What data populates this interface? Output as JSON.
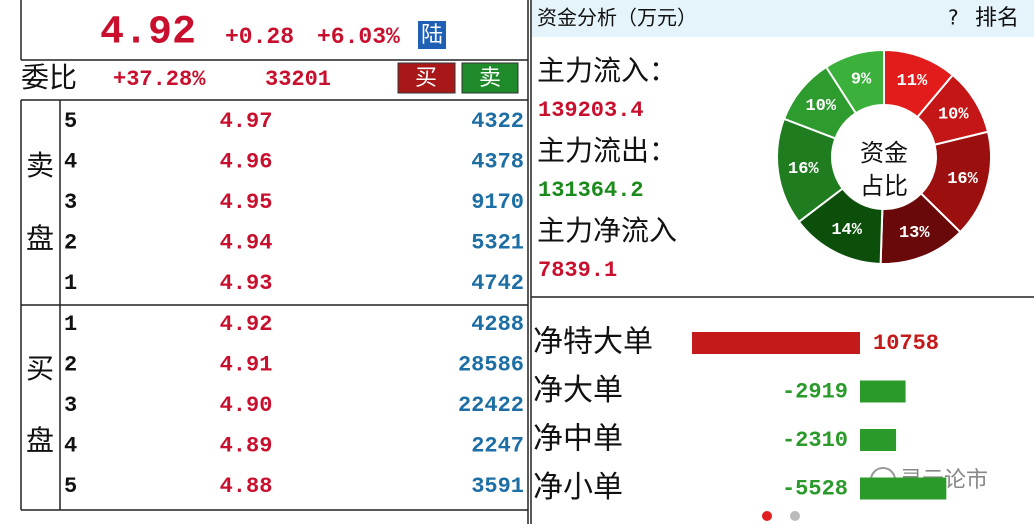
{
  "quote": {
    "price": "4.92",
    "change": "+0.28",
    "change_pct": "+6.03%",
    "badge": "陆"
  },
  "ratio": {
    "label": "委比",
    "pct": "+37.28%",
    "diff": "33201",
    "buy_button": "买",
    "sell_button": "卖"
  },
  "order_book": {
    "sell_label": [
      "卖",
      "盘"
    ],
    "sell": [
      {
        "level": "5",
        "price": "4.97",
        "volume": "4322"
      },
      {
        "level": "4",
        "price": "4.96",
        "volume": "4378"
      },
      {
        "level": "3",
        "price": "4.95",
        "volume": "9170"
      },
      {
        "level": "2",
        "price": "4.94",
        "volume": "5321"
      },
      {
        "level": "1",
        "price": "4.93",
        "volume": "4742"
      }
    ],
    "buy_label": [
      "买",
      "盘"
    ],
    "buy": [
      {
        "level": "1",
        "price": "4.92",
        "volume": "4288"
      },
      {
        "level": "2",
        "price": "4.91",
        "volume": "28586"
      },
      {
        "level": "3",
        "price": "4.90",
        "volume": "22422"
      },
      {
        "level": "4",
        "price": "4.89",
        "volume": "2247"
      },
      {
        "level": "5",
        "price": "4.88",
        "volume": "3591"
      }
    ]
  },
  "fund_panel": {
    "title": "资金分析（万元）",
    "help": "?",
    "rank": "排名",
    "inflow_label": "主力流入：",
    "inflow": "139203.4",
    "outflow_label": "主力流出：",
    "outflow": "131364.2",
    "net_label": "主力净流入",
    "net": "7839.1"
  },
  "chart_data": [
    {
      "type": "donut",
      "center_text": [
        "资金",
        "占比"
      ],
      "values": [
        11,
        10,
        16,
        13,
        14,
        16,
        10,
        9
      ],
      "value_labels": [
        "11%",
        "10%",
        "16%",
        "13%",
        "14%",
        "16%",
        "10%",
        "9%"
      ],
      "colors": [
        "#e21b1b",
        "#c41616",
        "#9b0f0f",
        "#6a0909",
        "#0b4f0b",
        "#1f7d1f",
        "#2e9b2e",
        "#3bb03b"
      ]
    },
    {
      "type": "bar",
      "categories": [
        "净特大单",
        "净大单",
        "净中单",
        "净小单"
      ],
      "values": [
        10758,
        -2919,
        -2310,
        -5528
      ],
      "positive_color": "#c41a1a",
      "negative_color": "#2a9a2a"
    }
  ],
  "watermark": "灵云论市"
}
